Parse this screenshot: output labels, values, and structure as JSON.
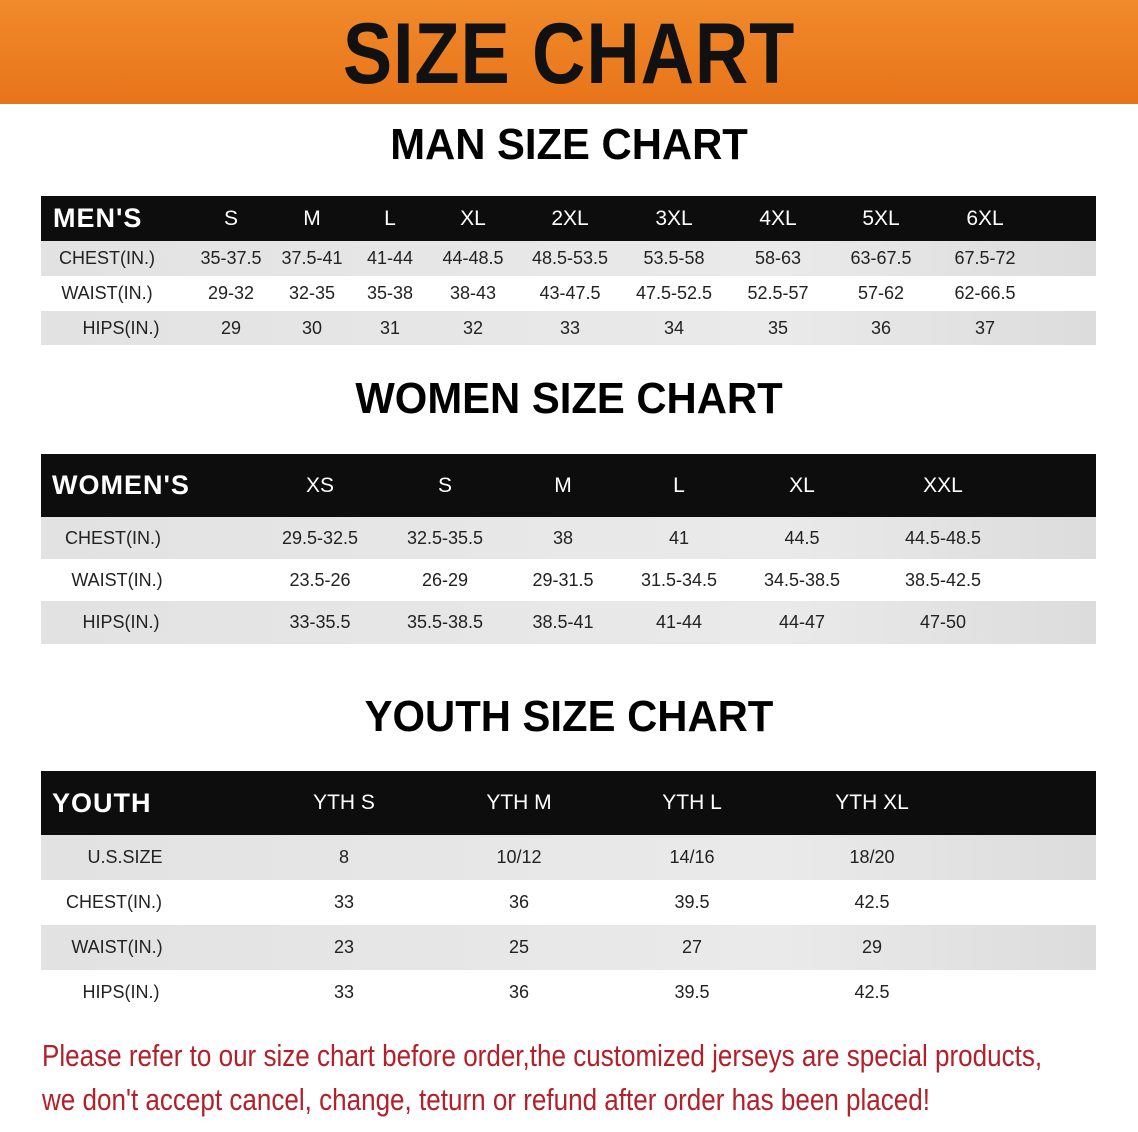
{
  "title": "SIZE CHART",
  "colors": {
    "banner": "#ee7d1c",
    "header_row": "#0d0d0d",
    "note": "#b3202a"
  },
  "men": {
    "section_title": "MAN SIZE CHART",
    "header": [
      "MEN'S",
      "S",
      "M",
      "L",
      "XL",
      "2XL",
      "3XL",
      "4XL",
      "5XL",
      "6XL"
    ],
    "rows": [
      [
        "CHEST(IN.)",
        "35-37.5",
        "37.5-41",
        "41-44",
        "44-48.5",
        "48.5-53.5",
        "53.5-58",
        "58-63",
        "63-67.5",
        "67.5-72"
      ],
      [
        "WAIST(IN.)",
        "29-32",
        "32-35",
        "35-38",
        "38-43",
        "43-47.5",
        "47.5-52.5",
        "52.5-57",
        "57-62",
        "62-66.5"
      ],
      [
        "HIPS(IN.)",
        "29",
        "30",
        "31",
        "32",
        "33",
        "34",
        "35",
        "36",
        "37"
      ]
    ]
  },
  "women": {
    "section_title": "WOMEN SIZE CHART",
    "header": [
      "WOMEN'S",
      "XS",
      "S",
      "M",
      "L",
      "XL",
      "XXL"
    ],
    "rows": [
      [
        "CHEST(IN.)",
        "29.5-32.5",
        "32.5-35.5",
        "38",
        "41",
        "44.5",
        "44.5-48.5"
      ],
      [
        "WAIST(IN.)",
        "23.5-26",
        "26-29",
        "29-31.5",
        "31.5-34.5",
        "34.5-38.5",
        "38.5-42.5"
      ],
      [
        "HIPS(IN.)",
        "33-35.5",
        "35.5-38.5",
        "38.5-41",
        "41-44",
        "44-47",
        "47-50"
      ]
    ]
  },
  "youth": {
    "section_title": "YOUTH SIZE CHART",
    "header": [
      "YOUTH",
      "YTH S",
      "YTH M",
      "YTH L",
      "YTH XL"
    ],
    "rows": [
      [
        "U.S.SIZE",
        "8",
        "10/12",
        "14/16",
        "18/20"
      ],
      [
        "CHEST(IN.)",
        "33",
        "36",
        "39.5",
        "42.5"
      ],
      [
        "WAIST(IN.)",
        "23",
        "25",
        "27",
        "29"
      ],
      [
        "HIPS(IN.)",
        "33",
        "36",
        "39.5",
        "42.5"
      ]
    ]
  },
  "note": {
    "line1": "Please refer to our size chart before order,the customized jerseys are special products,",
    "line2": "we don't accept cancel, change, teturn or refund after order has been placed!"
  }
}
